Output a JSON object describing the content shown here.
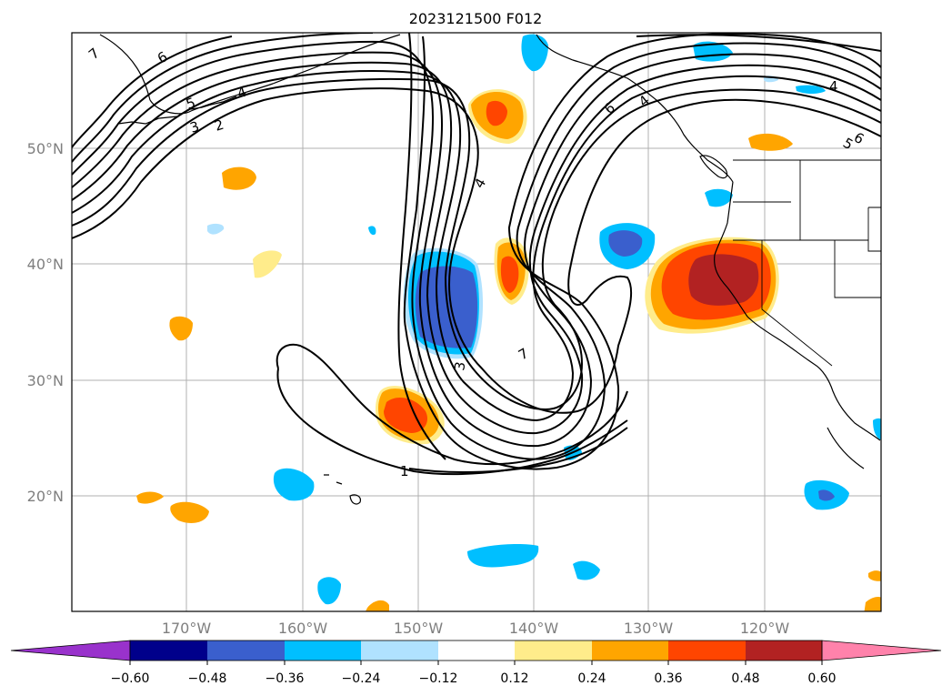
{
  "title": "2023121500 F012",
  "lat_labels": [
    "50°N",
    "40°N",
    "30°N",
    "20°N"
  ],
  "lon_labels": [
    "170°W",
    "160°W",
    "150°W",
    "140°W",
    "130°W",
    "120°W"
  ],
  "colorbar": {
    "ticks": [
      "−0.60",
      "−0.48",
      "−0.36",
      "−0.24",
      "−0.12",
      "0.12",
      "0.24",
      "0.36",
      "0.48",
      "0.60"
    ],
    "colors": [
      "#9932cc",
      "#00008b",
      "#3a5fcd",
      "#00bfff",
      "#b0e2ff",
      "#ffffff",
      "#ffec8b",
      "#ffa500",
      "#ff4500",
      "#b22222",
      "#ff82ab"
    ]
  },
  "contour_labels": [
    "7",
    "6",
    "5",
    "4",
    "3",
    "2",
    "4",
    "6",
    "4",
    "5",
    "6",
    "4",
    "3",
    "7",
    "1"
  ]
}
